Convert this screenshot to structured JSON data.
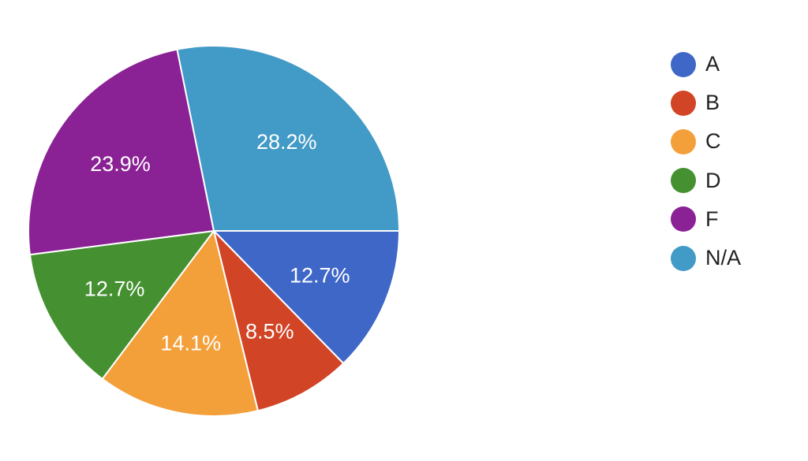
{
  "chart_data": {
    "type": "pie",
    "start_angle_deg": 90,
    "direction": "clockwise",
    "legend_position": "right",
    "slices": [
      {
        "label": "A",
        "value": 12.7,
        "value_label": "12.7%",
        "color": "#3f67c8"
      },
      {
        "label": "B",
        "value": 8.5,
        "value_label": "8.5%",
        "color": "#d14426"
      },
      {
        "label": "C",
        "value": 14.1,
        "value_label": "14.1%",
        "color": "#f3a03b"
      },
      {
        "label": "D",
        "value": 12.7,
        "value_label": "12.7%",
        "color": "#459131"
      },
      {
        "label": "F",
        "value": 23.9,
        "value_label": "23.9%",
        "color": "#8a2195"
      },
      {
        "label": "N/A",
        "value": 28.2,
        "value_label": "28.2%",
        "color": "#429ac6"
      }
    ]
  }
}
